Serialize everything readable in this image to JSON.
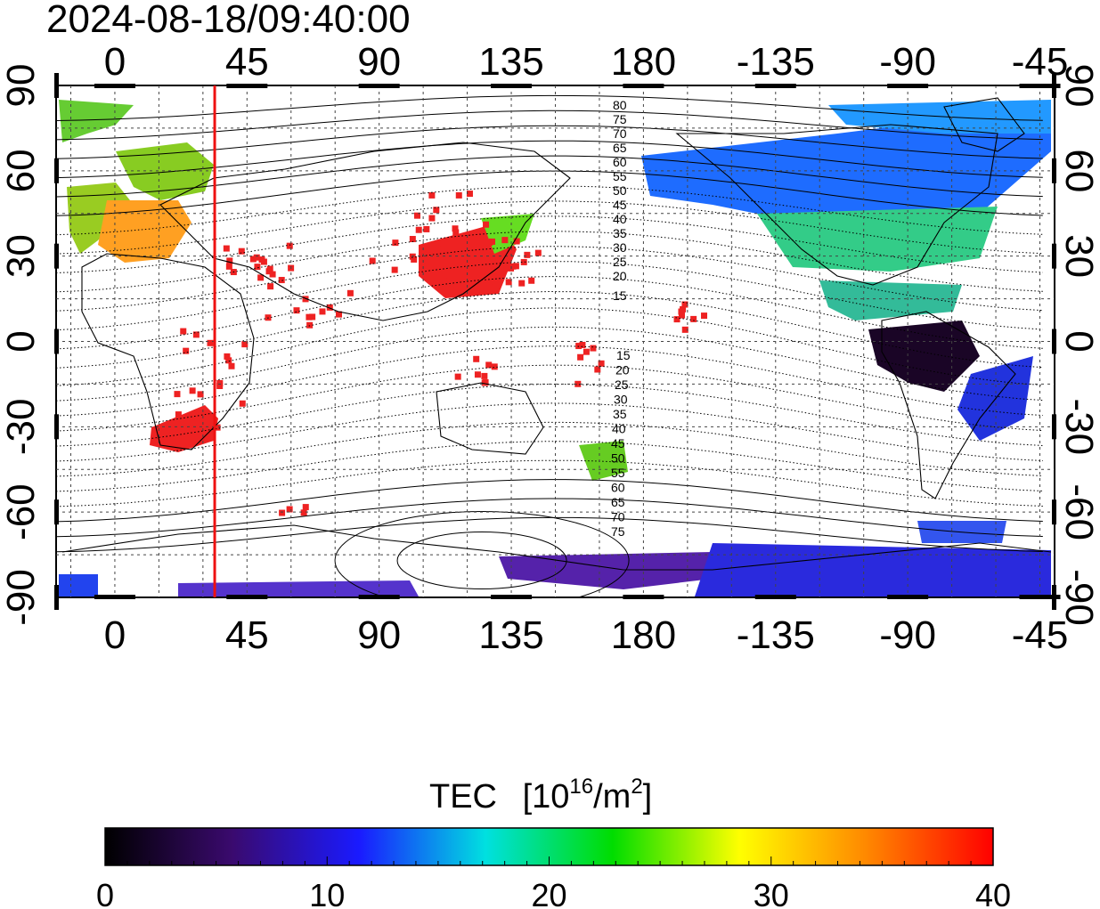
{
  "timestamp": "2024-08-18/09:40:00",
  "map": {
    "lon_tick_labels": [
      "0",
      "45",
      "90",
      "135",
      "180",
      "-135",
      "-90",
      "-45"
    ],
    "lat_tick_labels": [
      "90",
      "60",
      "30",
      "0",
      "-30",
      "-60",
      "-90"
    ],
    "lon_range": [
      -20,
      320
    ],
    "lat_range": [
      -90,
      90
    ],
    "grid": true,
    "marker_longitude": 34,
    "marker_color": "#ee1111",
    "contour_labels_north": [
      "80",
      "75",
      "70",
      "65",
      "60",
      "55",
      "50",
      "45",
      "40",
      "35",
      "30",
      "25",
      "20",
      "15"
    ],
    "contour_labels_south": [
      "15",
      "20",
      "25",
      "30",
      "35",
      "40",
      "45",
      "50",
      "55",
      "60",
      "65",
      "70",
      "75"
    ]
  },
  "colorbar": {
    "title": "TEC",
    "unit_base": "[10",
    "unit_exp": "16",
    "unit_mid": "/m",
    "unit_exp2": "2",
    "unit_close": "]",
    "range": [
      0,
      40
    ],
    "tick_labels": [
      "0",
      "10",
      "20",
      "30",
      "40"
    ],
    "stops": [
      "#000000",
      "#3a0a6e",
      "#1a1aff",
      "#00e0e0",
      "#00dd00",
      "#ffff00",
      "#ff8800",
      "#ff0000"
    ]
  }
}
